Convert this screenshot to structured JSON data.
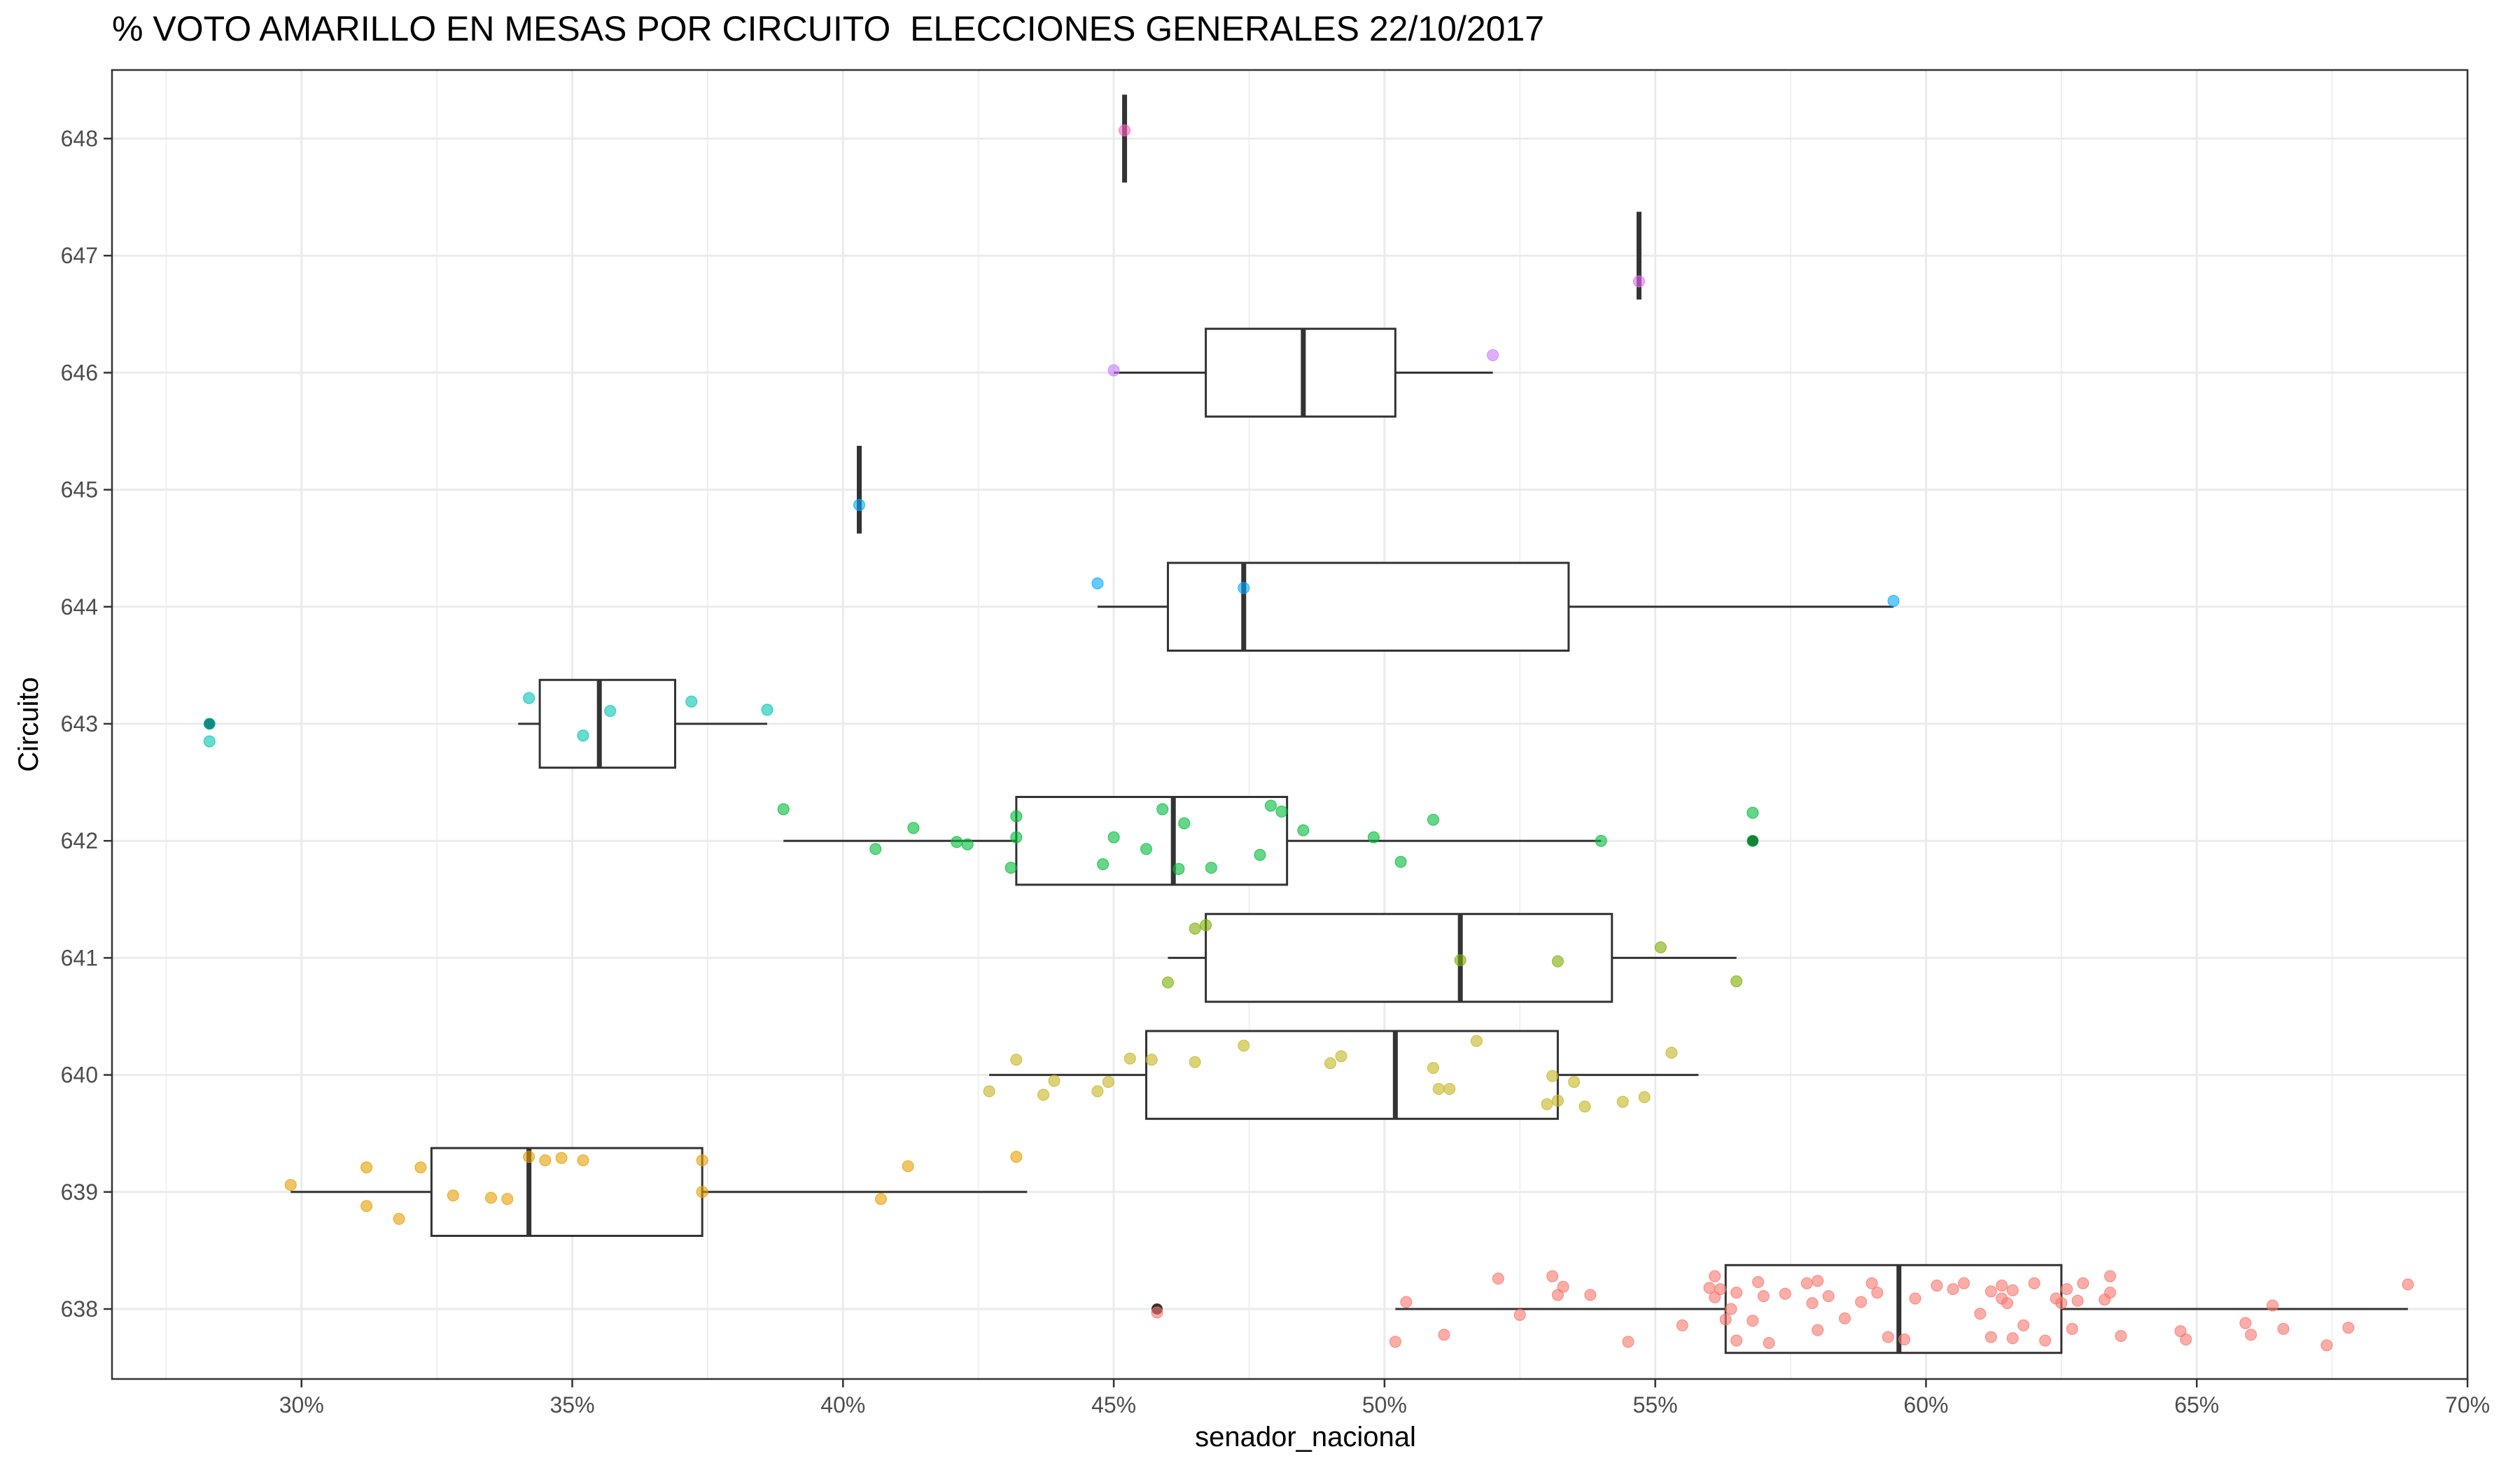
{
  "chart_data": {
    "type": "boxplot",
    "title": "% VOTO AMARILLO EN MESAS POR CIRCUITO  ELECCIONES GENERALES 22/10/2017",
    "xlabel": "senador_nacional",
    "ylabel": "Circuito",
    "orientation": "horizontal",
    "xlim": [
      0.265,
      0.7
    ],
    "x_ticks": [
      0.3,
      0.35,
      0.4,
      0.45,
      0.5,
      0.55,
      0.6,
      0.65,
      0.7
    ],
    "x_tick_labels": [
      "30%",
      "35%",
      "40%",
      "45%",
      "50%",
      "55%",
      "60%",
      "65%",
      "70%"
    ],
    "categories": [
      "638",
      "639",
      "640",
      "641",
      "642",
      "643",
      "644",
      "645",
      "646",
      "647",
      "648"
    ],
    "grid": true,
    "legend": "none",
    "boxes": [
      {
        "circuit": "638",
        "color": "#F8766D",
        "min": 0.502,
        "q1": 0.563,
        "median": 0.595,
        "q3": 0.625,
        "max": 0.689,
        "outliers": [
          0.458
        ],
        "points": [
          [
            0.502,
            -0.28
          ],
          [
            0.504,
            0.06
          ],
          [
            0.511,
            -0.22
          ],
          [
            0.521,
            0.26
          ],
          [
            0.525,
            -0.05
          ],
          [
            0.531,
            0.28
          ],
          [
            0.532,
            0.12
          ],
          [
            0.533,
            0.19
          ],
          [
            0.538,
            0.12
          ],
          [
            0.545,
            -0.28
          ],
          [
            0.555,
            -0.14
          ],
          [
            0.56,
            0.18
          ],
          [
            0.561,
            0.28
          ],
          [
            0.561,
            0.1
          ],
          [
            0.562,
            0.17
          ],
          [
            0.563,
            -0.09
          ],
          [
            0.564,
            0.0
          ],
          [
            0.565,
            0.14
          ],
          [
            0.565,
            -0.27
          ],
          [
            0.568,
            -0.1
          ],
          [
            0.569,
            0.23
          ],
          [
            0.57,
            0.11
          ],
          [
            0.571,
            -0.29
          ],
          [
            0.574,
            0.13
          ],
          [
            0.578,
            0.22
          ],
          [
            0.579,
            0.05
          ],
          [
            0.58,
            0.24
          ],
          [
            0.58,
            -0.18
          ],
          [
            0.582,
            0.11
          ],
          [
            0.585,
            -0.08
          ],
          [
            0.588,
            0.06
          ],
          [
            0.59,
            0.22
          ],
          [
            0.591,
            0.14
          ],
          [
            0.593,
            -0.24
          ],
          [
            0.596,
            -0.26
          ],
          [
            0.598,
            0.09
          ],
          [
            0.602,
            0.2
          ],
          [
            0.605,
            0.17
          ],
          [
            0.607,
            0.22
          ],
          [
            0.61,
            -0.04
          ],
          [
            0.612,
            0.15
          ],
          [
            0.612,
            -0.24
          ],
          [
            0.614,
            0.2
          ],
          [
            0.614,
            0.09
          ],
          [
            0.615,
            0.05
          ],
          [
            0.616,
            -0.25
          ],
          [
            0.616,
            0.16
          ],
          [
            0.618,
            -0.14
          ],
          [
            0.62,
            0.22
          ],
          [
            0.622,
            -0.27
          ],
          [
            0.624,
            0.09
          ],
          [
            0.625,
            0.05
          ],
          [
            0.626,
            0.17
          ],
          [
            0.627,
            -0.17
          ],
          [
            0.628,
            0.07
          ],
          [
            0.629,
            0.22
          ],
          [
            0.633,
            0.08
          ],
          [
            0.634,
            0.28
          ],
          [
            0.634,
            0.14
          ],
          [
            0.636,
            -0.23
          ],
          [
            0.647,
            -0.19
          ],
          [
            0.648,
            -0.26
          ],
          [
            0.659,
            -0.12
          ],
          [
            0.66,
            -0.22
          ],
          [
            0.664,
            0.03
          ],
          [
            0.666,
            -0.17
          ],
          [
            0.674,
            -0.31
          ],
          [
            0.678,
            -0.16
          ],
          [
            0.689,
            0.21
          ],
          [
            0.458,
            -0.03
          ]
        ]
      },
      {
        "circuit": "639",
        "color": "#E69F00",
        "min": 0.298,
        "q1": 0.324,
        "median": 0.342,
        "q3": 0.374,
        "max": 0.434,
        "outliers": [],
        "points": [
          [
            0.298,
            0.06
          ],
          [
            0.312,
            0.21
          ],
          [
            0.312,
            -0.12
          ],
          [
            0.318,
            -0.23
          ],
          [
            0.322,
            0.21
          ],
          [
            0.328,
            -0.03
          ],
          [
            0.335,
            -0.05
          ],
          [
            0.338,
            -0.06
          ],
          [
            0.342,
            0.3
          ],
          [
            0.345,
            0.27
          ],
          [
            0.348,
            0.29
          ],
          [
            0.352,
            0.27
          ],
          [
            0.374,
            0.27
          ],
          [
            0.374,
            0.0
          ],
          [
            0.407,
            -0.06
          ],
          [
            0.412,
            0.22
          ],
          [
            0.432,
            0.3
          ]
        ]
      },
      {
        "circuit": "640",
        "color": "#C4B520",
        "min": 0.427,
        "q1": 0.456,
        "median": 0.502,
        "q3": 0.532,
        "max": 0.558,
        "outliers": [],
        "points": [
          [
            0.427,
            -0.14
          ],
          [
            0.432,
            0.13
          ],
          [
            0.437,
            -0.17
          ],
          [
            0.439,
            -0.05
          ],
          [
            0.447,
            -0.14
          ],
          [
            0.449,
            -0.06
          ],
          [
            0.453,
            0.14
          ],
          [
            0.457,
            0.13
          ],
          [
            0.465,
            0.11
          ],
          [
            0.474,
            0.25
          ],
          [
            0.49,
            0.1
          ],
          [
            0.492,
            0.16
          ],
          [
            0.509,
            0.06
          ],
          [
            0.51,
            -0.12
          ],
          [
            0.512,
            -0.12
          ],
          [
            0.517,
            0.29
          ],
          [
            0.53,
            -0.25
          ],
          [
            0.531,
            -0.01
          ],
          [
            0.532,
            -0.22
          ],
          [
            0.535,
            -0.06
          ],
          [
            0.537,
            -0.27
          ],
          [
            0.544,
            -0.23
          ],
          [
            0.548,
            -0.19
          ],
          [
            0.553,
            0.19
          ]
        ]
      },
      {
        "circuit": "641",
        "color": "#7CAE00",
        "min": 0.46,
        "q1": 0.467,
        "median": 0.514,
        "q3": 0.542,
        "max": 0.565,
        "outliers": [],
        "points": [
          [
            0.46,
            -0.21
          ],
          [
            0.465,
            0.25
          ],
          [
            0.467,
            0.28
          ],
          [
            0.514,
            -0.02
          ],
          [
            0.532,
            -0.03
          ],
          [
            0.551,
            0.09
          ],
          [
            0.565,
            -0.2
          ]
        ]
      },
      {
        "circuit": "642",
        "color": "#00BA38",
        "min": 0.389,
        "q1": 0.432,
        "median": 0.461,
        "q3": 0.482,
        "max": 0.54,
        "outliers": [
          0.568
        ],
        "points": [
          [
            0.389,
            0.27
          ],
          [
            0.406,
            -0.07
          ],
          [
            0.413,
            0.11
          ],
          [
            0.421,
            -0.01
          ],
          [
            0.423,
            -0.03
          ],
          [
            0.432,
            0.03
          ],
          [
            0.432,
            0.21
          ],
          [
            0.431,
            -0.23
          ],
          [
            0.448,
            -0.2
          ],
          [
            0.45,
            0.03
          ],
          [
            0.456,
            -0.07
          ],
          [
            0.459,
            0.27
          ],
          [
            0.462,
            -0.24
          ],
          [
            0.463,
            0.15
          ],
          [
            0.468,
            -0.23
          ],
          [
            0.477,
            -0.12
          ],
          [
            0.479,
            0.3
          ],
          [
            0.481,
            0.25
          ],
          [
            0.485,
            0.09
          ],
          [
            0.498,
            0.03
          ],
          [
            0.503,
            -0.18
          ],
          [
            0.509,
            0.18
          ],
          [
            0.54,
            0.0
          ],
          [
            0.568,
            0.24
          ],
          [
            0.568,
            0.0
          ]
        ]
      },
      {
        "circuit": "643",
        "color": "#00C4B4",
        "min": 0.34,
        "q1": 0.344,
        "median": 0.355,
        "q3": 0.369,
        "max": 0.386,
        "outliers": [
          0.283
        ],
        "points": [
          [
            0.283,
            -0.15
          ],
          [
            0.342,
            0.22
          ],
          [
            0.352,
            -0.1
          ],
          [
            0.357,
            0.11
          ],
          [
            0.372,
            0.19
          ],
          [
            0.386,
            0.12
          ],
          [
            0.283,
            0.0
          ]
        ]
      },
      {
        "circuit": "644",
        "color": "#00A9FF",
        "min": 0.447,
        "q1": 0.46,
        "median": 0.474,
        "q3": 0.534,
        "max": 0.594,
        "outliers": [],
        "points": [
          [
            0.447,
            0.2
          ],
          [
            0.474,
            0.16
          ],
          [
            0.594,
            0.05
          ]
        ]
      },
      {
        "circuit": "645",
        "color": "#00A9FF",
        "min": 0.403,
        "q1": 0.403,
        "median": 0.403,
        "q3": 0.403,
        "max": 0.403,
        "outliers": [],
        "points": [
          [
            0.403,
            -0.13
          ]
        ]
      },
      {
        "circuit": "646",
        "color": "#C77CFF",
        "min": 0.45,
        "q1": 0.467,
        "median": 0.485,
        "q3": 0.502,
        "max": 0.52,
        "outliers": [],
        "points": [
          [
            0.45,
            0.02
          ],
          [
            0.52,
            0.15
          ]
        ]
      },
      {
        "circuit": "647",
        "color": "#E76BF3",
        "min": 0.547,
        "q1": 0.547,
        "median": 0.547,
        "q3": 0.547,
        "max": 0.547,
        "outliers": [],
        "points": [
          [
            0.547,
            -0.22
          ]
        ]
      },
      {
        "circuit": "648",
        "color": "#FF61C3",
        "min": 0.452,
        "q1": 0.452,
        "median": 0.452,
        "q3": 0.452,
        "max": 0.452,
        "outliers": [],
        "points": [
          [
            0.452,
            0.07
          ]
        ]
      }
    ]
  }
}
